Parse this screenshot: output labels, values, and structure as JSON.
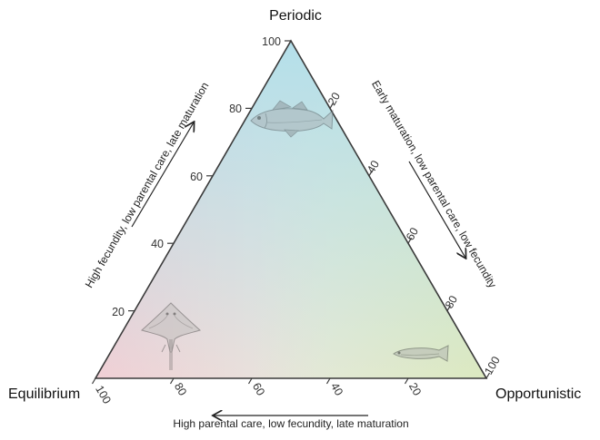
{
  "vertices": {
    "top": "Periodic",
    "left": "Equilibrium",
    "right": "Opportunistic"
  },
  "axes": {
    "left_caption": "High fecundity, low parental care, late maturation",
    "right_caption": "Early maturation, low parental care, low fecundity",
    "bottom_caption": "High parental care, low fecundity, late maturation",
    "left_ticks": [
      "20",
      "40",
      "60",
      "80",
      "100"
    ],
    "right_ticks": [
      "20",
      "40",
      "60",
      "80",
      "100"
    ],
    "bottom_ticks": [
      "100",
      "80",
      "60",
      "40",
      "20"
    ]
  },
  "colors": {
    "top": "#b7e0ea",
    "left": "#efcfd4",
    "right": "#dde9c2",
    "outline": "#3a3a3a"
  },
  "icons": {
    "periodic": "cod-fish-icon",
    "equilibrium": "skate-ray-icon",
    "opportunistic": "small-fish-icon"
  }
}
